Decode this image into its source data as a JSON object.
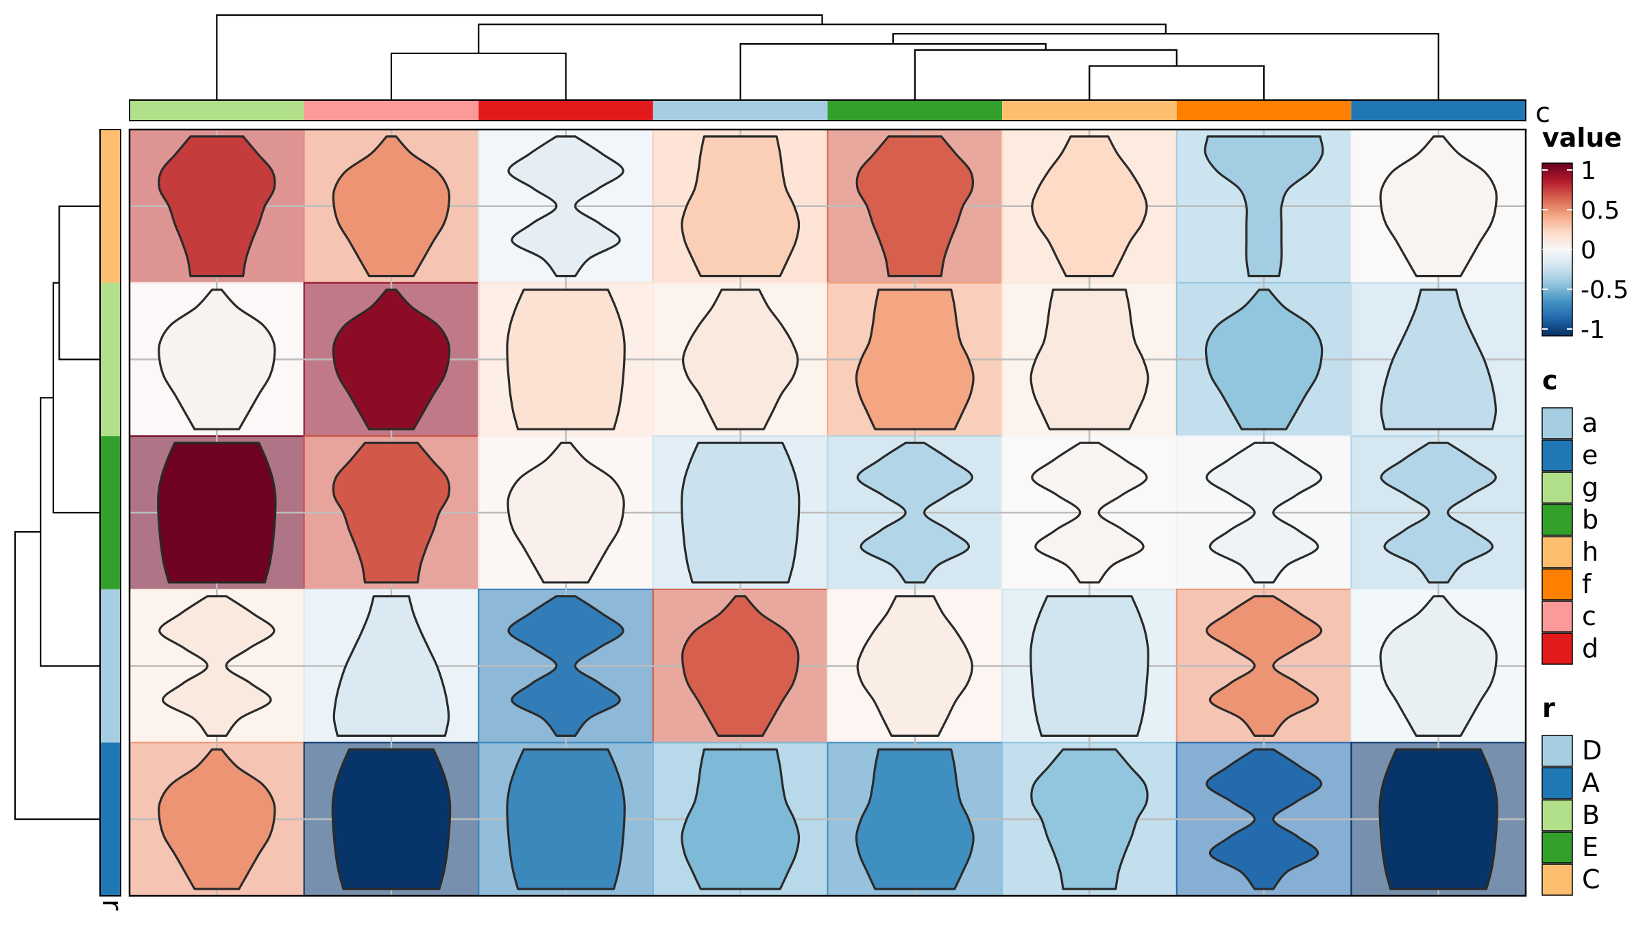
{
  "chart_data": {
    "type": "heatmap",
    "subtype": "violin-in-cell heatmap with row/column dendrograms",
    "columns": {
      "annotation_name": "c",
      "order": [
        "g",
        "c",
        "d",
        "a",
        "b",
        "h",
        "f",
        "e"
      ],
      "colors": {
        "a": "#A6CEE3",
        "e": "#1F78B4",
        "g": "#B2DF8A",
        "b": "#33A02C",
        "h": "#FDBF6F",
        "f": "#FF7F00",
        "c": "#FB9A99",
        "d": "#E31A1C"
      },
      "dendrogram": {
        "heights": {
          "gc": 0.88,
          "cd": 0.55,
          "hf": 0.4,
          "bh": 0.59,
          "ef": 0.56,
          "aBHF": 0.66,
          "abhfe": 0.78,
          "right": 0.89,
          "root": 1.0
        }
      }
    },
    "rows": {
      "annotation_name": "r",
      "order": [
        "C",
        "B",
        "E",
        "D",
        "A"
      ],
      "colors": {
        "D": "#A6CEE3",
        "A": "#1F78B4",
        "B": "#B2DF8A",
        "E": "#33A02C",
        "C": "#FDBF6F"
      },
      "dendrogram": {
        "heights": {
          "CB": 0.48,
          "CBE": 0.55,
          "CBED": 0.7,
          "root": 1.0
        }
      }
    },
    "values": [
      [
        0.7,
        0.45,
        -0.1,
        0.25,
        0.6,
        0.2,
        -0.35,
        0.02
      ],
      [
        0.03,
        0.9,
        0.15,
        0.1,
        0.4,
        0.1,
        -0.4,
        -0.25
      ],
      [
        0.98,
        0.62,
        0.05,
        -0.22,
        -0.3,
        0.02,
        -0.05,
        -0.3
      ],
      [
        0.1,
        -0.15,
        -0.7,
        0.6,
        0.07,
        -0.2,
        0.45,
        -0.08
      ],
      [
        0.45,
        -0.98,
        -0.65,
        -0.45,
        -0.62,
        -0.4,
        -0.78,
        -0.98
      ]
    ],
    "violins": [
      [
        "rhombus",
        "bell",
        "hourglass",
        "urn",
        "rhombus",
        "cup",
        "funnel",
        "bell"
      ],
      [
        "bell",
        "bell",
        "box",
        "cup",
        "urn",
        "urn",
        "bell",
        "cone"
      ],
      [
        "box",
        "rhombus",
        "bell",
        "box",
        "hourglass",
        "hourglass",
        "hourglass",
        "hourglass"
      ],
      [
        "hourglass",
        "cone",
        "hourglass",
        "bell",
        "cup",
        "box",
        "hourglass",
        "bell"
      ],
      [
        "bell",
        "box",
        "box",
        "urn",
        "urn",
        "rhombus",
        "hourglass",
        "box"
      ]
    ],
    "legend": {
      "value": {
        "title": "value",
        "ticks": [
          1,
          0.5,
          0,
          -0.5,
          -1
        ],
        "tick_labels": [
          "1",
          "0.5",
          "0",
          "-0.5",
          "-1"
        ],
        "range": [
          -1,
          1
        ]
      },
      "c": {
        "title": "c",
        "items": [
          "a",
          "e",
          "g",
          "b",
          "h",
          "f",
          "c",
          "d"
        ]
      },
      "r": {
        "title": "r",
        "items": [
          "D",
          "A",
          "B",
          "E",
          "C"
        ]
      }
    },
    "palette": {
      "stops": [
        "#053061",
        "#2166AC",
        "#4393C3",
        "#92C5DE",
        "#D1E5F0",
        "#F7F7F7",
        "#FDDBC7",
        "#F4A582",
        "#D6604D",
        "#B2182B",
        "#67001F"
      ],
      "grid": "#BDBDBD",
      "outline": "#2A2A2A"
    }
  }
}
